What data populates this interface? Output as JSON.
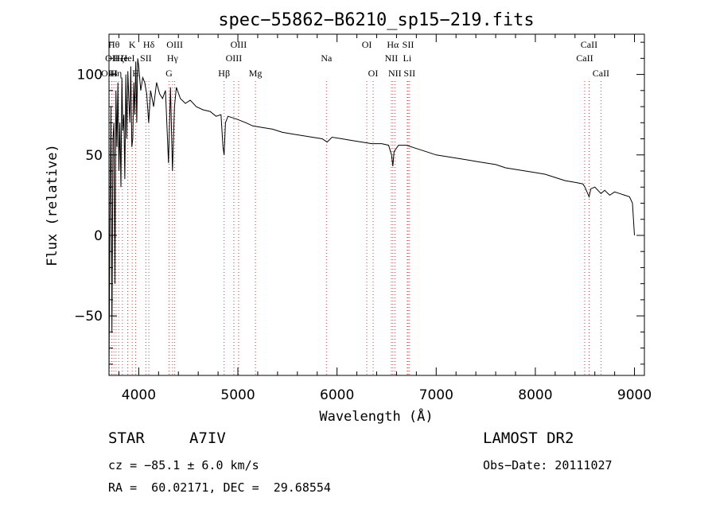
{
  "chart_data": {
    "type": "line",
    "title": "spec−55862−B6210_sp15−219.fits",
    "xlabel": "Wavelength (Å)",
    "ylabel": "Flux (relative)",
    "xlim": [
      3700,
      9100
    ],
    "ylim": [
      -87,
      125
    ],
    "x_ticks": [
      4000,
      5000,
      6000,
      7000,
      8000,
      9000
    ],
    "y_ticks": [
      -50,
      0,
      50,
      100
    ],
    "tick_labels_x": [
      "4000",
      "5000",
      "6000",
      "7000",
      "8000",
      "9000"
    ],
    "tick_labels_y": [
      "−50",
      "0",
      "50",
      "100"
    ],
    "grid": false,
    "series": [
      {
        "x": [
          3700,
          3710,
          3720,
          3730,
          3740,
          3750,
          3760,
          3770,
          3780,
          3790,
          3800,
          3810,
          3820,
          3830,
          3840,
          3850,
          3860,
          3870,
          3880,
          3890,
          3900,
          3910,
          3920,
          3930,
          3940,
          3950,
          3960,
          3970,
          3980,
          3990,
          4000,
          4020,
          4040,
          4060,
          4080,
          4100,
          4120,
          4150,
          4180,
          4210,
          4240,
          4270,
          4300,
          4320,
          4340,
          4360,
          4380,
          4420,
          4470,
          4520,
          4580,
          4650,
          4720,
          4780,
          4830,
          4850,
          4861,
          4875,
          4900,
          4950,
          5000,
          5080,
          5150,
          5250,
          5350,
          5450,
          5550,
          5650,
          5750,
          5850,
          5900,
          5950,
          6050,
          6150,
          6250,
          6350,
          6450,
          6520,
          6550,
          6563,
          6575,
          6620,
          6700,
          6800,
          6900,
          7000,
          7100,
          7200,
          7300,
          7400,
          7500,
          7600,
          7700,
          7800,
          7900,
          8000,
          8100,
          8200,
          8300,
          8400,
          8480,
          8500,
          8542,
          8560,
          8600,
          8662,
          8700,
          8750,
          8800,
          8850,
          8900,
          8950,
          8980,
          9000
        ],
        "y": [
          -85,
          10,
          80,
          -60,
          60,
          70,
          -30,
          90,
          55,
          95,
          40,
          70,
          30,
          98,
          65,
          75,
          35,
          100,
          60,
          102,
          85,
          70,
          105,
          55,
          60,
          95,
          75,
          108,
          70,
          110,
          105,
          90,
          98,
          95,
          88,
          70,
          90,
          80,
          95,
          88,
          85,
          90,
          45,
          92,
          40,
          80,
          92,
          85,
          82,
          84,
          80,
          78,
          77,
          74,
          75,
          55,
          50,
          70,
          74,
          73,
          72,
          70,
          68,
          67,
          66,
          64,
          63,
          62,
          61,
          60,
          58,
          61,
          60,
          59,
          58,
          57,
          57,
          56,
          50,
          43,
          52,
          56,
          56,
          54,
          52,
          50,
          49,
          48,
          47,
          46,
          45,
          44,
          42,
          41,
          40,
          39,
          38,
          36,
          34,
          33,
          32,
          30,
          24,
          29,
          30,
          26,
          28,
          25,
          27,
          26,
          25,
          24,
          20,
          0
        ]
      }
    ],
    "lines": [
      {
        "x": 3704,
        "label": "OIII",
        "row": 3
      },
      {
        "x": 3728,
        "label": "OII",
        "row": 2
      },
      {
        "x": 3750,
        "label": "Hθ",
        "row": 1
      },
      {
        "x": 3771,
        "label": "Hη",
        "row": 3
      },
      {
        "x": 3798,
        "label": "Hζ",
        "row": 2
      },
      {
        "x": 3835,
        "label": "He",
        "row": 2
      },
      {
        "x": 3889,
        "label": "HeI",
        "row": 2
      },
      {
        "x": 3934,
        "label": "K",
        "row": 1
      },
      {
        "x": 3969,
        "label": "H",
        "row": 3
      },
      {
        "x": 4072,
        "label": "SII",
        "row": 2
      },
      {
        "x": 4102,
        "label": "Hδ",
        "row": 1
      },
      {
        "x": 4305,
        "label": "G",
        "row": 3
      },
      {
        "x": 4341,
        "label": "Hγ",
        "row": 2
      },
      {
        "x": 4363,
        "label": "OIII",
        "row": 1
      },
      {
        "x": 4861,
        "label": "Hβ",
        "row": 3
      },
      {
        "x": 4959,
        "label": "OIII",
        "row": 2
      },
      {
        "x": 5007,
        "label": "OIII",
        "row": 1
      },
      {
        "x": 5177,
        "label": "Mg",
        "row": 3
      },
      {
        "x": 5893,
        "label": "Na",
        "row": 2
      },
      {
        "x": 6300,
        "label": "OI",
        "row": 1
      },
      {
        "x": 6364,
        "label": "OI",
        "row": 3
      },
      {
        "x": 6548,
        "label": "NII",
        "row": 2
      },
      {
        "x": 6563,
        "label": "Hα",
        "row": 1
      },
      {
        "x": 6583,
        "label": "NII",
        "row": 3
      },
      {
        "x": 6708,
        "label": "Li",
        "row": 2
      },
      {
        "x": 6717,
        "label": "SII",
        "row": 1
      },
      {
        "x": 6731,
        "label": "SII",
        "row": 3
      },
      {
        "x": 8498,
        "label": "CaII",
        "row": 2
      },
      {
        "x": 8542,
        "label": "CaII",
        "row": 1
      },
      {
        "x": 8662,
        "label": "CaII",
        "row": 3
      }
    ]
  },
  "info": {
    "obj_class": "STAR",
    "subclass": "A7IV",
    "survey": "LAMOST DR2",
    "cz": "cz = −85.1 ± 6.0 km/s",
    "obs_date": "Obs−Date: 20111027",
    "radec": "RA =  60.02171, DEC =  29.68554"
  }
}
